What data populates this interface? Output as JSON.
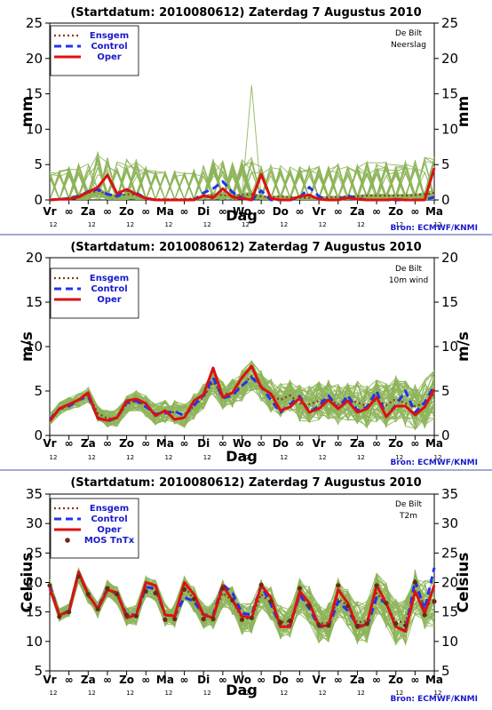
{
  "x_day_labels": [
    "Vr",
    "∞",
    "Za",
    "∞",
    "Zo",
    "∞",
    "Ma",
    "∞",
    "Di",
    "∞",
    "Wo",
    "∞",
    "Do",
    "∞",
    "Vr",
    "∞",
    "Za",
    "∞",
    "Zo",
    "∞",
    "Ma"
  ],
  "x_hour_label": "12",
  "xlabel": "Dag",
  "source": "Bron: ECMWF/KNMI",
  "colors": {
    "ensemble": "#8db45a",
    "ensgem": "#8b3a1e",
    "control": "#2233ee",
    "oper": "#dd1111",
    "mos": "#6b2a14",
    "separator": "#4455aa"
  },
  "chart_data": [
    {
      "type": "line",
      "title": "(Startdatum: 2010080612)   Zaterdag   7 Augustus  2010",
      "location": "De Bilt",
      "variable": "Neerslag",
      "xlabel": "Dag",
      "ylabel": "mm",
      "ylim": [
        0,
        25
      ],
      "yticks": [
        0,
        5,
        10,
        15,
        20,
        25
      ],
      "x_steps": [
        0,
        1,
        2,
        3,
        4,
        5,
        6,
        7,
        8,
        9,
        10,
        11,
        12,
        13,
        14,
        15,
        16,
        17,
        18,
        19,
        20,
        21,
        22,
        23,
        24,
        25,
        26,
        27,
        28,
        29,
        30,
        31,
        32,
        33,
        34,
        35,
        36,
        37,
        38,
        39,
        40
      ],
      "legend": [
        "Ensgem",
        "Control",
        "Oper"
      ],
      "series": [
        {
          "name": "Ensgem",
          "values": [
            0,
            0.1,
            0.3,
            0.6,
            1.0,
            1.3,
            0.8,
            0.5,
            0.8,
            0.7,
            0.3,
            0.1,
            0.1,
            0.1,
            0.1,
            0.2,
            0.5,
            0.7,
            0.7,
            0.6,
            0.7,
            0.8,
            0.5,
            0.4,
            0.5,
            0.4,
            0.3,
            0.3,
            0.3,
            0.4,
            0.4,
            0.5,
            0.5,
            0.6,
            0.6,
            0.6,
            0.6,
            0.6,
            0.7,
            0.8,
            1.0
          ]
        },
        {
          "name": "Control",
          "values": [
            0,
            0.1,
            0.2,
            0.5,
            1.2,
            1.5,
            0.8,
            0.5,
            1.4,
            1.0,
            0.2,
            0,
            0,
            0,
            0,
            0,
            1.0,
            1.6,
            2.6,
            1.1,
            0.3,
            0,
            1.3,
            0,
            0,
            0,
            0.3,
            1.8,
            0.5,
            0,
            0,
            0.6,
            0.2,
            0,
            0,
            0,
            0,
            0,
            0,
            0,
            0.4
          ]
        },
        {
          "name": "Oper",
          "values": [
            0,
            0.1,
            0.1,
            0.4,
            1.1,
            1.8,
            3.5,
            0.9,
            1.5,
            0.8,
            0.2,
            0,
            0,
            0,
            0,
            0,
            0.6,
            0.3,
            1.6,
            0.4,
            0.2,
            0,
            3.6,
            0.2,
            0,
            0,
            0.5,
            0.7,
            0.1,
            0,
            0,
            0.3,
            0.1,
            0,
            0,
            0,
            0.1,
            0,
            0,
            0,
            4.5
          ]
        }
      ]
    },
    {
      "type": "line",
      "title": "(Startdatum: 2010080612)   Zaterdag   7 Augustus  2010",
      "location": "De Bilt",
      "variable": "10m wind",
      "xlabel": "Dag",
      "ylabel": "m/s",
      "ylim": [
        0,
        20
      ],
      "yticks": [
        0,
        5,
        10,
        15,
        20
      ],
      "x_steps": [
        0,
        1,
        2,
        3,
        4,
        5,
        6,
        7,
        8,
        9,
        10,
        11,
        12,
        13,
        14,
        15,
        16,
        17,
        18,
        19,
        20,
        21,
        22,
        23,
        24,
        25,
        26,
        27,
        28,
        29,
        30,
        31,
        32,
        33,
        34,
        35,
        36,
        37,
        38,
        39,
        40
      ],
      "legend": [
        "Ensgem",
        "Control",
        "Oper"
      ],
      "series": [
        {
          "name": "Ensgem",
          "values": [
            1.8,
            3.0,
            3.5,
            4.0,
            4.6,
            2.5,
            1.9,
            2.0,
            3.5,
            3.9,
            3.3,
            2.4,
            2.7,
            2.6,
            2.3,
            3.3,
            4.3,
            6.0,
            4.6,
            4.8,
            5.6,
            6.7,
            5.6,
            4.5,
            4.0,
            4.5,
            3.6,
            3.5,
            3.9,
            4.0,
            3.5,
            4.0,
            3.7,
            3.3,
            4.0,
            3.4,
            4.1,
            3.6,
            3.3,
            3.6,
            4.6
          ]
        },
        {
          "name": "Control",
          "values": [
            1.8,
            3.0,
            3.3,
            4.0,
            4.4,
            2.0,
            1.6,
            2.0,
            3.7,
            3.9,
            3.2,
            2.4,
            2.5,
            2.7,
            2.2,
            3.4,
            4.5,
            6.5,
            4.2,
            4.5,
            5.6,
            6.5,
            5.5,
            4.0,
            2.6,
            3.5,
            4.4,
            2.6,
            3.3,
            4.5,
            3.0,
            4.5,
            2.8,
            3.2,
            5.0,
            2.1,
            3.4,
            5.0,
            2.6,
            3.7,
            5.6
          ]
        },
        {
          "name": "Oper",
          "values": [
            1.6,
            3.0,
            3.5,
            4.0,
            4.8,
            1.9,
            1.7,
            2.0,
            3.9,
            4.1,
            3.6,
            2.2,
            2.8,
            1.8,
            2.0,
            3.9,
            4.6,
            7.6,
            4.3,
            4.8,
            6.5,
            7.8,
            5.4,
            4.7,
            2.8,
            3.2,
            4.2,
            2.6,
            3.0,
            4.0,
            3.0,
            3.9,
            2.6,
            3.0,
            4.3,
            2.1,
            3.3,
            3.3,
            2.3,
            3.2,
            5.2
          ]
        }
      ]
    },
    {
      "type": "line",
      "title": "(Startdatum: 2010080612)   Zaterdag   7 Augustus  2010",
      "location": "De Bilt",
      "variable": "T2m",
      "xlabel": "Dag",
      "ylabel": "Celsius",
      "ylim": [
        5,
        35
      ],
      "yticks": [
        5,
        10,
        15,
        20,
        25,
        30,
        35
      ],
      "x_steps": [
        0,
        1,
        2,
        3,
        4,
        5,
        6,
        7,
        8,
        9,
        10,
        11,
        12,
        13,
        14,
        15,
        16,
        17,
        18,
        19,
        20,
        21,
        22,
        23,
        24,
        25,
        26,
        27,
        28,
        29,
        30,
        31,
        32,
        33,
        34,
        35,
        36,
        37,
        38,
        39,
        40
      ],
      "legend": [
        "Ensgem",
        "Control",
        "Oper",
        "MOS TnTx"
      ],
      "series": [
        {
          "name": "Ensgem",
          "values": [
            19.5,
            14.5,
            15.2,
            21.3,
            17.8,
            15.4,
            19.0,
            17.8,
            14.3,
            14.5,
            19.3,
            18.7,
            14.5,
            14.4,
            19.2,
            17.2,
            14.2,
            14.3,
            18.2,
            17.0,
            13.8,
            14.0,
            18.0,
            16.5,
            13.3,
            13.4,
            17.6,
            16.2,
            13.0,
            13.2,
            17.3,
            16.0,
            13.2,
            13.5,
            18.2,
            16.2,
            13.3,
            13.3,
            18.5,
            16.3,
            16.5
          ]
        },
        {
          "name": "Control",
          "values": [
            19.5,
            14.4,
            15.2,
            21.8,
            17.8,
            15.6,
            19.0,
            18.0,
            14.5,
            14.5,
            19.2,
            19.0,
            14.5,
            14.3,
            17.5,
            16.8,
            14.5,
            14.5,
            19.7,
            18.2,
            14.8,
            14.5,
            19.5,
            16.3,
            12.5,
            12.8,
            17.9,
            15.6,
            12.5,
            12.5,
            16.8,
            15.2,
            12.8,
            12.5,
            17.4,
            16.5,
            12.5,
            11.8,
            20.3,
            15.4,
            22.5
          ]
        },
        {
          "name": "Oper",
          "values": [
            19.0,
            14.5,
            15.0,
            21.8,
            18.0,
            15.5,
            18.7,
            18.3,
            14.0,
            14.5,
            20.0,
            19.5,
            14.5,
            14.3,
            20.0,
            18.0,
            14.5,
            14.0,
            19.5,
            17.0,
            14.3,
            14.0,
            19.5,
            17.5,
            12.5,
            12.5,
            18.5,
            16.5,
            12.6,
            12.7,
            18.8,
            16.5,
            12.3,
            13.0,
            19.5,
            16.5,
            12.5,
            11.7,
            18.5,
            14.8,
            19.5
          ]
        },
        {
          "name": "MOS TnTx",
          "values": [
            19.5,
            14.2,
            15.0,
            21.0,
            18.0,
            15.5,
            19.0,
            18.0,
            14.5,
            14.3,
            18.5,
            18.2,
            13.7,
            13.8,
            18.8,
            17.2,
            13.8,
            13.8,
            19.0,
            17.0,
            13.7,
            14.0,
            19.6,
            16.8,
            13.2,
            13.5,
            19.0,
            16.0,
            12.8,
            12.7,
            19.5,
            16.0,
            12.6,
            13.0,
            19.5,
            16.5,
            13.0,
            12.7,
            20.0,
            14.5,
            16.8
          ]
        }
      ]
    }
  ]
}
